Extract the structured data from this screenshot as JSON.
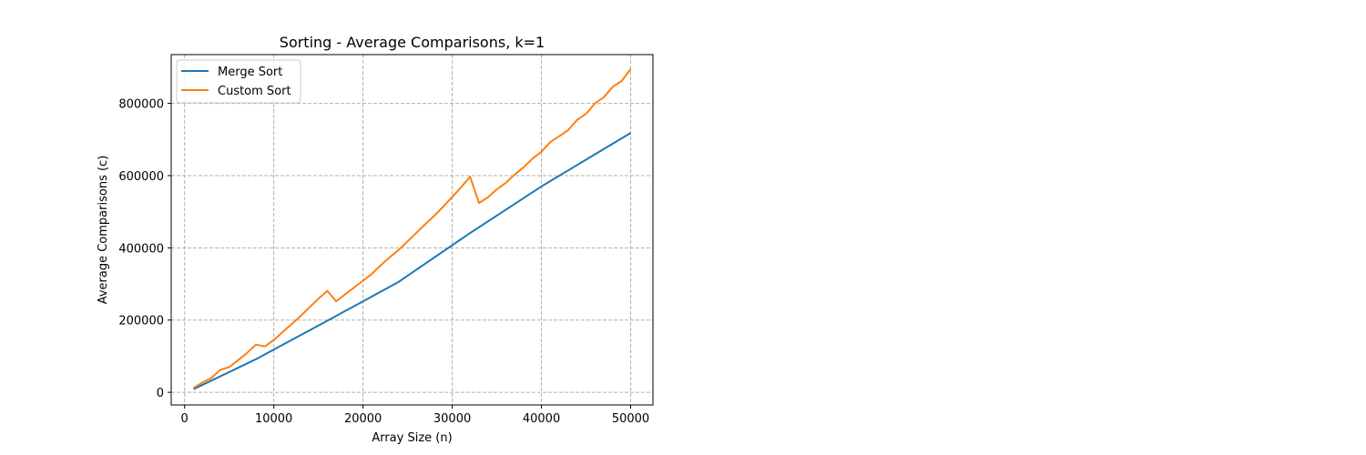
{
  "chart_data": {
    "type": "line",
    "title": "Sorting - Average Comparisons, k=1",
    "xlabel": "Array Size (n)",
    "ylabel": "Average Comparisons (c)",
    "xlim": [
      -1500,
      52500
    ],
    "ylim": [
      -35000,
      935000
    ],
    "xticks": [
      0,
      10000,
      20000,
      30000,
      40000,
      50000
    ],
    "xtick_labels": [
      "0",
      "10000",
      "20000",
      "30000",
      "40000",
      "50000"
    ],
    "yticks": [
      0,
      200000,
      400000,
      600000,
      800000
    ],
    "ytick_labels": [
      "0",
      "200000",
      "400000",
      "600000",
      "800000"
    ],
    "grid": true,
    "legend_position": "upper-left",
    "series": [
      {
        "name": "Merge Sort",
        "color": "#1f77b4",
        "x": [
          1000,
          8000,
          16000,
          24000,
          32000,
          40000,
          50000
        ],
        "y": [
          8700,
          91700,
          198000,
          306000,
          441000,
          570000,
          718000
        ]
      },
      {
        "name": "Custom Sort",
        "color": "#ff7f0e",
        "x": [
          1000,
          2000,
          3000,
          4000,
          5000,
          6000,
          7000,
          8000,
          9000,
          10000,
          11000,
          12000,
          13000,
          14000,
          15000,
          16000,
          17000,
          18000,
          19000,
          20000,
          21000,
          22000,
          23000,
          24000,
          25000,
          26000,
          27000,
          28000,
          29000,
          30000,
          31000,
          32000,
          33000,
          34000,
          35000,
          36000,
          37000,
          38000,
          39000,
          40000,
          41000,
          42000,
          43000,
          44000,
          45000,
          46000,
          47000,
          48000,
          49000,
          50000
        ],
        "y": [
          12000,
          27000,
          40000,
          62000,
          70000,
          89000,
          109000,
          132000,
          127000,
          145000,
          167000,
          189000,
          211000,
          235000,
          259000,
          281000,
          252000,
          271000,
          290000,
          309000,
          328000,
          352000,
          374000,
          394000,
          418000,
          442000,
          466000,
          489000,
          514000,
          541000,
          568000,
          597000,
          524000,
          540000,
          562000,
          580000,
          603000,
          623000,
          647000,
          666000,
          693000,
          709000,
          726000,
          754000,
          771000,
          800000,
          817000,
          846000,
          862000,
          895000
        ]
      }
    ]
  }
}
